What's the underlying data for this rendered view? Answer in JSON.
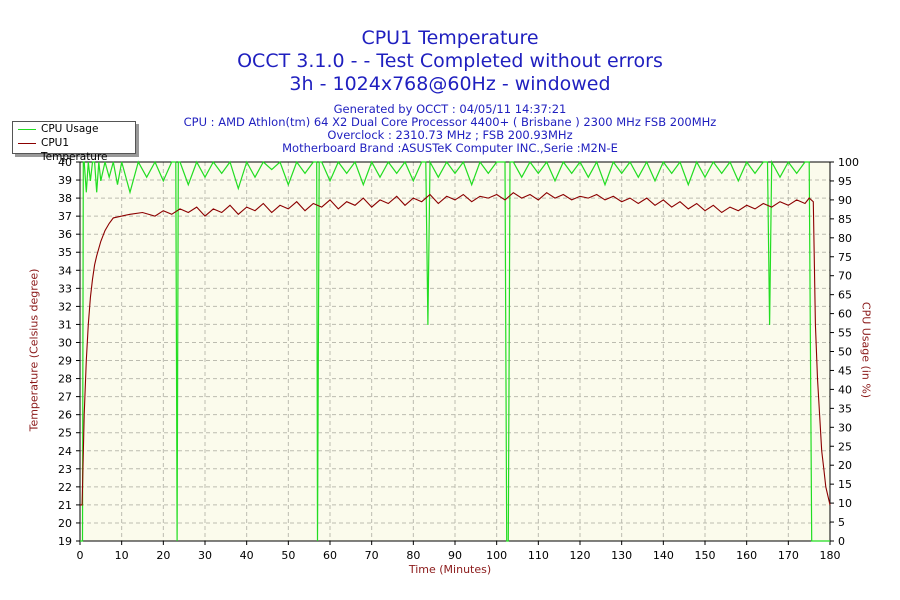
{
  "titles": {
    "line1": "CPU1 Temperature",
    "line2": "OCCT 3.1.0 -  - Test Completed without errors",
    "line3": "3h - 1024x768@60Hz - windowed"
  },
  "info": {
    "generated": "Generated by OCCT : 04/05/11 14:37:21",
    "cpu": "CPU : AMD Athlon(tm) 64 X2 Dual Core Processor 4400+ ( Brisbane ) 2300 MHz FSB 200MHz",
    "overclock": "Overclock : 2310.73 MHz ; FSB 200.93MHz",
    "motherboard": "Motherboard Brand :ASUSTeK Computer INC.,Serie :M2N-E"
  },
  "colors": {
    "usage": "#22dd22",
    "temperature": "#8b0000",
    "plot_bg": "#fbfbec",
    "grid": "#bcbcb0",
    "title": "#1f1fbf",
    "axis_label": "#8b1a1a"
  },
  "chart_data": {
    "type": "line",
    "title": "CPU1 Temperature",
    "xlabel": "Time (Minutes)",
    "ylabel": "Temperature (Celsius degree)",
    "y2label": "CPU Usage (in %)",
    "xlim": [
      0,
      180
    ],
    "ylim": [
      19,
      40
    ],
    "y2lim": [
      0,
      100
    ],
    "x_ticks": [
      0,
      10,
      20,
      30,
      40,
      50,
      60,
      70,
      80,
      90,
      100,
      110,
      120,
      130,
      140,
      150,
      160,
      170,
      180
    ],
    "y_ticks": [
      19,
      20,
      21,
      22,
      23,
      24,
      25,
      26,
      27,
      28,
      29,
      30,
      31,
      32,
      33,
      34,
      35,
      36,
      37,
      38,
      39,
      40
    ],
    "y2_ticks": [
      0,
      5,
      10,
      15,
      20,
      25,
      30,
      35,
      40,
      45,
      50,
      55,
      60,
      65,
      70,
      75,
      80,
      85,
      90,
      95,
      100
    ],
    "grid": true,
    "legend_position": "top-left",
    "series": [
      {
        "name": "CPU Usage",
        "axis": "right",
        "x": [
          0,
          0.6,
          0.8,
          1,
          1.5,
          2,
          2.5,
          3,
          3.5,
          4,
          4.5,
          5,
          6,
          7,
          8,
          9,
          10,
          12,
          14,
          16,
          18,
          20,
          22,
          23,
          23.3,
          23.6,
          24,
          26,
          28,
          30,
          32,
          34,
          36,
          38,
          40,
          42,
          44,
          46,
          48,
          50,
          52,
          54,
          56,
          56.8,
          57,
          57.4,
          58,
          60,
          62,
          64,
          66,
          68,
          70,
          72,
          74,
          76,
          78,
          80,
          82,
          83,
          83.5,
          84,
          86,
          88,
          90,
          92,
          94,
          96,
          98,
          100,
          102,
          102.4,
          102.8,
          103.2,
          104,
          106,
          108,
          110,
          112,
          114,
          116,
          118,
          120,
          122,
          124,
          126,
          128,
          130,
          132,
          134,
          136,
          138,
          140,
          142,
          144,
          146,
          148,
          150,
          152,
          154,
          156,
          158,
          160,
          162,
          164,
          165,
          165.5,
          166,
          168,
          170,
          172,
          174,
          175,
          175.6,
          176,
          176.5,
          177,
          178,
          180
        ],
        "y": [
          0,
          0,
          100,
          100,
          92,
          100,
          95,
          100,
          100,
          92,
          100,
          95,
          100,
          96,
          100,
          94,
          100,
          92,
          100,
          96,
          100,
          95,
          100,
          100,
          0,
          100,
          100,
          94,
          100,
          96,
          100,
          97,
          100,
          93,
          100,
          96,
          100,
          98,
          100,
          94,
          100,
          97,
          100,
          100,
          0,
          100,
          100,
          95,
          100,
          97,
          100,
          94,
          100,
          96,
          100,
          97,
          100,
          95,
          100,
          100,
          57,
          100,
          96,
          100,
          97,
          100,
          94,
          100,
          97,
          100,
          100,
          0,
          0,
          100,
          100,
          96,
          100,
          97,
          100,
          95,
          100,
          97,
          100,
          96,
          100,
          94,
          100,
          97,
          100,
          96,
          100,
          95,
          100,
          97,
          100,
          94,
          100,
          96,
          100,
          97,
          100,
          95,
          100,
          97,
          100,
          100,
          57,
          100,
          96,
          100,
          97,
          100,
          100,
          0,
          0,
          0,
          0,
          0,
          0
        ]
      },
      {
        "name": "CPU1 Temperature",
        "axis": "left",
        "x": [
          0,
          0.5,
          1,
          1.5,
          2,
          2.5,
          3,
          3.5,
          4,
          5,
          6,
          7,
          8,
          10,
          12,
          15,
          18,
          20,
          22,
          24,
          26,
          28,
          30,
          32,
          34,
          36,
          38,
          40,
          42,
          44,
          46,
          48,
          50,
          52,
          54,
          56,
          58,
          60,
          62,
          64,
          66,
          68,
          70,
          72,
          74,
          76,
          78,
          80,
          82,
          84,
          86,
          88,
          90,
          92,
          94,
          96,
          98,
          100,
          102,
          104,
          106,
          108,
          110,
          112,
          114,
          116,
          118,
          120,
          122,
          124,
          126,
          128,
          130,
          132,
          134,
          136,
          138,
          140,
          142,
          144,
          146,
          148,
          150,
          152,
          154,
          156,
          158,
          160,
          162,
          164,
          166,
          168,
          170,
          172,
          174,
          175,
          176,
          176.5,
          177,
          177.5,
          178,
          178.5,
          179,
          180
        ],
        "y": [
          21,
          21,
          26,
          29,
          31,
          32.5,
          33.5,
          34.3,
          34.8,
          35.6,
          36.2,
          36.6,
          36.9,
          37.0,
          37.1,
          37.2,
          37.0,
          37.3,
          37.1,
          37.4,
          37.2,
          37.5,
          37.0,
          37.4,
          37.2,
          37.6,
          37.1,
          37.5,
          37.3,
          37.7,
          37.2,
          37.6,
          37.4,
          37.8,
          37.3,
          37.7,
          37.5,
          37.9,
          37.4,
          37.8,
          37.6,
          38.0,
          37.5,
          37.9,
          37.7,
          38.1,
          37.6,
          38.0,
          37.8,
          38.2,
          37.7,
          38.1,
          37.9,
          38.2,
          37.8,
          38.1,
          38.0,
          38.2,
          37.9,
          38.3,
          38.0,
          38.2,
          37.9,
          38.3,
          38.0,
          38.2,
          37.9,
          38.1,
          38.0,
          38.2,
          37.9,
          38.1,
          37.8,
          38.0,
          37.7,
          38.0,
          37.6,
          37.9,
          37.5,
          37.8,
          37.4,
          37.7,
          37.3,
          37.6,
          37.2,
          37.5,
          37.3,
          37.6,
          37.4,
          37.7,
          37.5,
          37.8,
          37.6,
          37.9,
          37.7,
          38.0,
          37.8,
          31,
          28,
          26,
          24,
          23,
          22,
          21
        ]
      }
    ]
  }
}
